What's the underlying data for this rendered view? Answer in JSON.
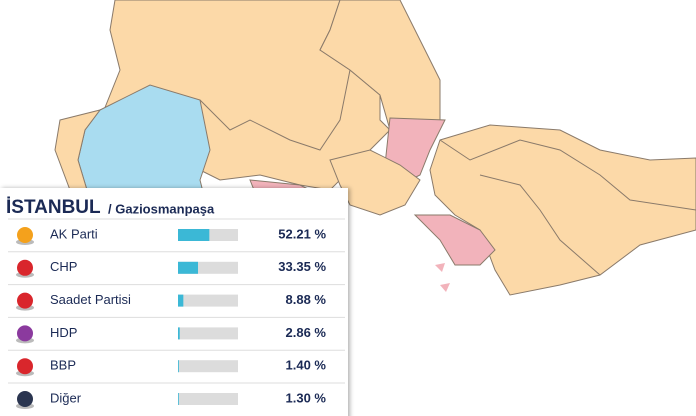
{
  "header": {
    "title": "İSTANBUL",
    "subtitle": "/ Gaziosmanpaşa"
  },
  "chart_data": {
    "type": "bar",
    "orientation": "horizontal",
    "categories": [
      "AK Parti",
      "CHP",
      "Saadet Partisi",
      "HDP",
      "BBP",
      "Diğer"
    ],
    "values": [
      52.21,
      33.35,
      8.88,
      2.86,
      1.4,
      1.3
    ],
    "value_labels": [
      "52.21 %",
      "33.35 %",
      "8.88 %",
      "2.86 %",
      "1.40 %",
      "1.30 %"
    ],
    "xlim": [
      0,
      100
    ],
    "color": "#3bb8d6",
    "track_color": "#dcdcdc"
  }
}
